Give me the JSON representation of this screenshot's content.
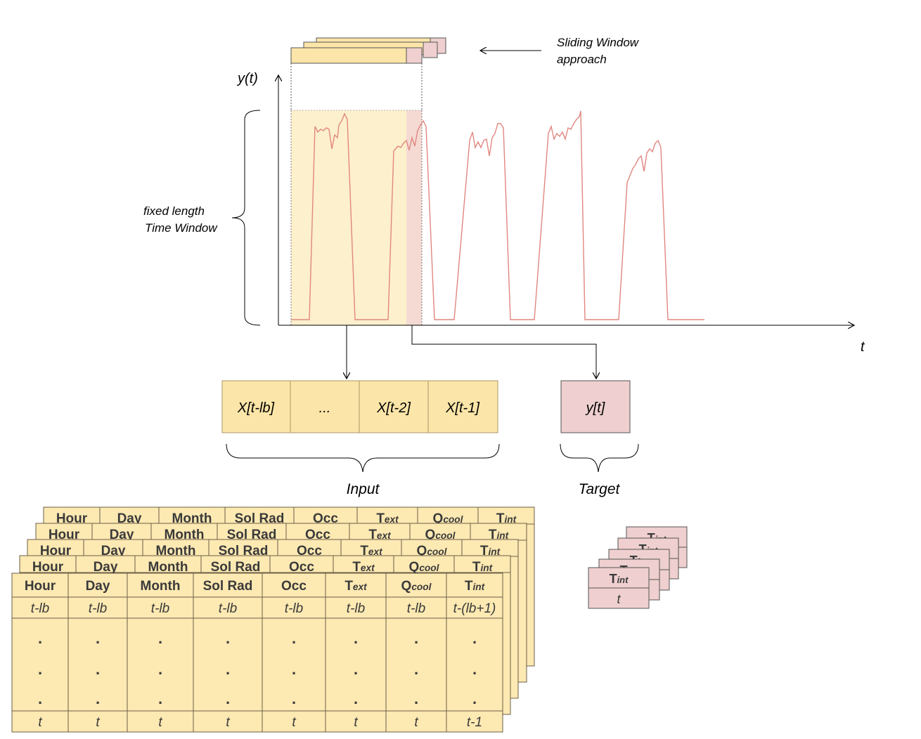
{
  "labels": {
    "y_axis": "y(t)",
    "x_axis": "t",
    "time_window_line1": "fixed length",
    "time_window_line2": "Time Window",
    "sliding_line1": "Sliding Window",
    "sliding_line2": "approach",
    "input_label": "Input",
    "target_label": "Target"
  },
  "input_cells": [
    "X[t-lb]",
    "...",
    "X[t-2]",
    "X[t-1]"
  ],
  "target_cell": "y[t]",
  "table": {
    "headers": [
      {
        "main": "Hour",
        "sub": ""
      },
      {
        "main": "Day",
        "sub": ""
      },
      {
        "main": "Month",
        "sub": ""
      },
      {
        "main": "Sol Rad",
        "sub": ""
      },
      {
        "main": "Occ",
        "sub": ""
      },
      {
        "main": "T",
        "sub": "ext"
      },
      {
        "main": "Q",
        "sub": "cool"
      },
      {
        "main": "T",
        "sub": "int"
      }
    ],
    "first_row": [
      "t-lb",
      "t-lb",
      "t-lb",
      "t-lb",
      "t-lb",
      "t-lb",
      "t-lb",
      "t-(lb+1)"
    ],
    "dot": ".",
    "last_row": [
      "t",
      "t",
      "t",
      "t",
      "t",
      "t",
      "t",
      "t-1"
    ]
  },
  "target_table": {
    "header_main": "T",
    "header_sub": "int",
    "row": "t"
  },
  "colors": {
    "input_fill": "#fbe5a8",
    "window_fill": "#fdeec7",
    "target_fill": "#efcfcf",
    "series_line": "#e08780",
    "table_fill": "#fde9b2",
    "axis": "#000000"
  }
}
